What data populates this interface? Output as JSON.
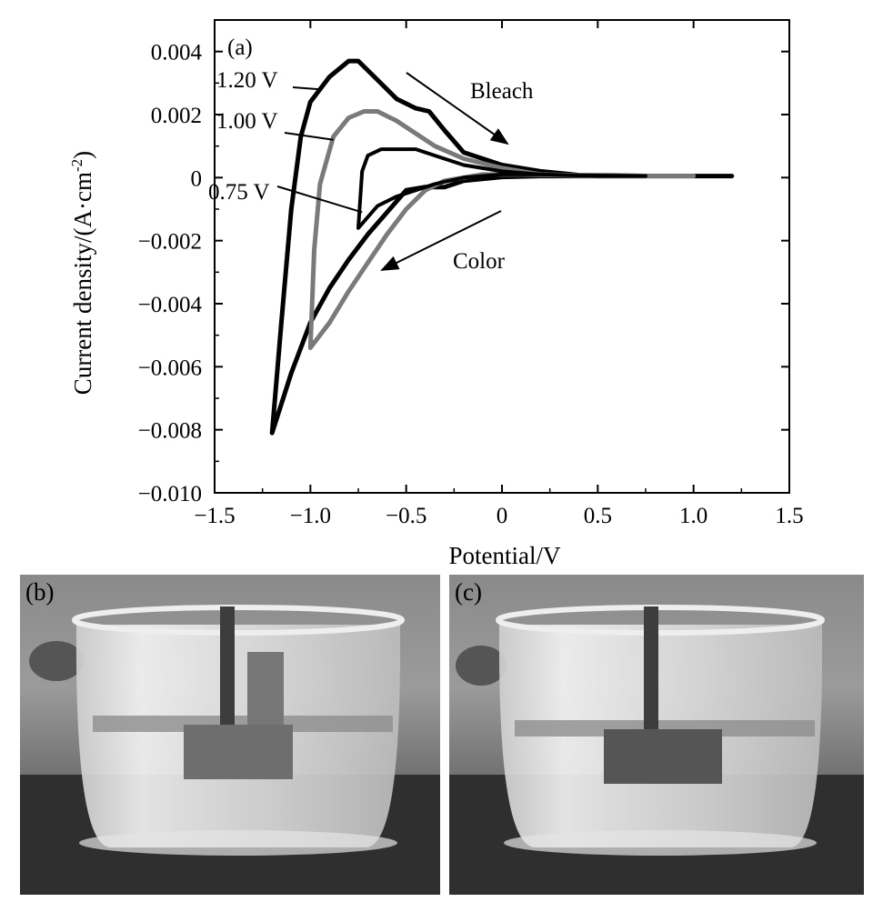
{
  "chart_data": {
    "type": "line",
    "panel_label": "(a)",
    "xlabel": "Potential/V",
    "ylabel": "Current density/(A·cm",
    "ylabel_sup": "-2",
    "ylabel_end": ")",
    "xlim": [
      -1.5,
      1.5
    ],
    "ylim": [
      -0.01,
      0.005
    ],
    "x_ticks": [
      -1.5,
      -1.0,
      -0.5,
      0,
      0.5,
      1.0,
      1.5
    ],
    "x_tick_labels": [
      "−1.5",
      "−1.0",
      "−0.5",
      "0",
      "0.5",
      "1.0",
      "1.5"
    ],
    "y_ticks": [
      0.004,
      0.002,
      0,
      -0.002,
      -0.004,
      -0.006,
      -0.008,
      -0.01
    ],
    "y_tick_labels": [
      "0.004",
      "0.002",
      "0",
      "−0.002",
      "−0.004",
      "−0.006",
      "−0.008",
      "−0.010"
    ],
    "grid": false,
    "series": [
      {
        "name": "1.20 V",
        "color": "#000000",
        "points": [
          [
            1.2,
            5e-05
          ],
          [
            0.8,
            5e-05
          ],
          [
            0.4,
            8e-05
          ],
          [
            0.2,
            0.0002
          ],
          [
            0.0,
            0.0004
          ],
          [
            -0.2,
            0.0008
          ],
          [
            -0.3,
            0.0015
          ],
          [
            -0.38,
            0.0021
          ],
          [
            -0.45,
            0.0022
          ],
          [
            -0.55,
            0.0025
          ],
          [
            -0.65,
            0.0031
          ],
          [
            -0.75,
            0.0037
          ],
          [
            -0.8,
            0.0037
          ],
          [
            -0.9,
            0.0032
          ],
          [
            -1.0,
            0.0024
          ],
          [
            -1.05,
            0.0013
          ],
          [
            -1.1,
            -0.001
          ],
          [
            -1.15,
            -0.0045
          ],
          [
            -1.2,
            -0.0081
          ],
          [
            -1.1,
            -0.0062
          ],
          [
            -1.0,
            -0.0046
          ],
          [
            -0.9,
            -0.0035
          ],
          [
            -0.8,
            -0.0026
          ],
          [
            -0.7,
            -0.0018
          ],
          [
            -0.6,
            -0.0011
          ],
          [
            -0.5,
            -0.0004
          ],
          [
            -0.4,
            -0.0003
          ],
          [
            -0.3,
            -0.0003
          ],
          [
            -0.2,
            -0.0001
          ],
          [
            0.0,
            2e-05
          ],
          [
            0.2,
            5e-05
          ],
          [
            0.6,
            5e-05
          ],
          [
            1.0,
            5e-05
          ],
          [
            1.2,
            5e-05
          ]
        ]
      },
      {
        "name": "1.00 V",
        "color": "#7a7a7a",
        "points": [
          [
            1.0,
            5e-05
          ],
          [
            0.6,
            5e-05
          ],
          [
            0.2,
            0.0001
          ],
          [
            0.0,
            0.0003
          ],
          [
            -0.2,
            0.0006
          ],
          [
            -0.35,
            0.001
          ],
          [
            -0.45,
            0.0014
          ],
          [
            -0.55,
            0.0018
          ],
          [
            -0.65,
            0.0021
          ],
          [
            -0.72,
            0.0021
          ],
          [
            -0.8,
            0.0019
          ],
          [
            -0.88,
            0.0013
          ],
          [
            -0.95,
            -0.0002
          ],
          [
            -0.98,
            -0.0023
          ],
          [
            -1.0,
            -0.0054
          ],
          [
            -0.9,
            -0.0046
          ],
          [
            -0.8,
            -0.0036
          ],
          [
            -0.7,
            -0.0027
          ],
          [
            -0.6,
            -0.0018
          ],
          [
            -0.5,
            -0.001
          ],
          [
            -0.4,
            -0.0004
          ],
          [
            -0.3,
            -0.0001
          ],
          [
            -0.1,
            0.0001
          ],
          [
            0.1,
            0.0001
          ],
          [
            0.5,
            5e-05
          ],
          [
            1.0,
            5e-05
          ]
        ]
      },
      {
        "name": "0.75 V",
        "color": "#000000",
        "points": [
          [
            0.75,
            5e-05
          ],
          [
            0.4,
            7e-05
          ],
          [
            0.2,
            0.0001
          ],
          [
            0.0,
            0.0002
          ],
          [
            -0.2,
            0.0004
          ],
          [
            -0.35,
            0.0007
          ],
          [
            -0.45,
            0.0009
          ],
          [
            -0.55,
            0.0009
          ],
          [
            -0.63,
            0.0009
          ],
          [
            -0.7,
            0.0007
          ],
          [
            -0.73,
            0.0002
          ],
          [
            -0.75,
            -0.0016
          ],
          [
            -0.65,
            -0.0009
          ],
          [
            -0.55,
            -0.0006
          ],
          [
            -0.45,
            -0.0004
          ],
          [
            -0.35,
            -0.0002
          ],
          [
            -0.2,
            0.0
          ],
          [
            0.0,
            0.0001
          ],
          [
            0.2,
            0.0001
          ],
          [
            0.5,
            5e-05
          ],
          [
            0.75,
            5e-05
          ]
        ]
      }
    ],
    "annotations": [
      {
        "text": "1.20 V",
        "x": -0.78,
        "y": 0.0035,
        "pointer_to": [
          -0.95,
          0.0028
        ]
      },
      {
        "text": "1.00 V",
        "x": -0.78,
        "y": 0.0018,
        "pointer_to": [
          -0.88,
          0.0012
        ]
      },
      {
        "text": "0.75 V",
        "x": -0.75,
        "y": -0.0008,
        "pointer_to": [
          -0.73,
          -0.0011
        ]
      },
      {
        "text": "Bleach",
        "x": -0.15,
        "y": 0.0028
      },
      {
        "text": "Color",
        "x": -0.25,
        "y": -0.0027
      }
    ]
  },
  "photos": [
    {
      "label": "(b)"
    },
    {
      "label": "(c)"
    }
  ]
}
